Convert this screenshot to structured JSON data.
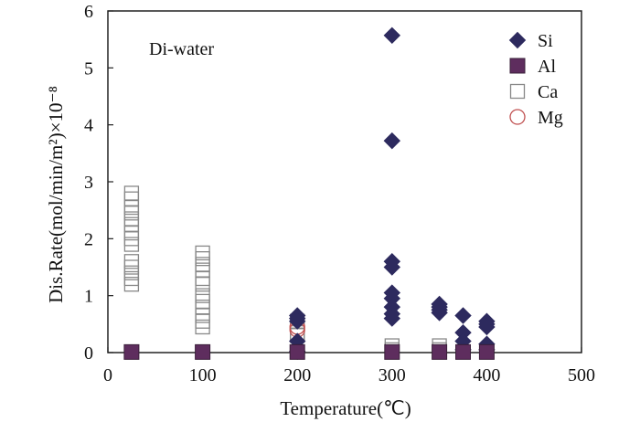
{
  "chart_data": {
    "type": "scatter",
    "title": "",
    "annotation": "Di-water",
    "xlabel": "Temperature(℃)",
    "ylabel": "Dis.Rate(mol/min/m²)×10⁻⁸",
    "xlim": [
      0,
      500
    ],
    "ylim": [
      0,
      6
    ],
    "xticks": [
      "0",
      "100",
      "200",
      "300",
      "400",
      "500"
    ],
    "yticks": [
      "0",
      "1",
      "2",
      "3",
      "4",
      "5",
      "6"
    ],
    "grid": false,
    "legend_position": "top-right",
    "series": [
      {
        "name": "Si",
        "marker": "diamond",
        "color": "#2d2a5e",
        "points": [
          [
            200,
            0.65
          ],
          [
            200,
            0.6
          ],
          [
            200,
            0.55
          ],
          [
            200,
            0.2
          ],
          [
            200,
            0.02
          ],
          [
            300,
            5.57
          ],
          [
            300,
            3.72
          ],
          [
            300,
            1.6
          ],
          [
            300,
            1.5
          ],
          [
            300,
            1.05
          ],
          [
            300,
            0.95
          ],
          [
            300,
            0.8
          ],
          [
            300,
            0.68
          ],
          [
            300,
            0.6
          ],
          [
            350,
            0.85
          ],
          [
            350,
            0.8
          ],
          [
            350,
            0.75
          ],
          [
            350,
            0.7
          ],
          [
            375,
            0.65
          ],
          [
            375,
            0.35
          ],
          [
            375,
            0.2
          ],
          [
            375,
            0.05
          ],
          [
            400,
            0.55
          ],
          [
            400,
            0.5
          ],
          [
            400,
            0.45
          ],
          [
            400,
            0.15
          ],
          [
            400,
            0.05
          ]
        ]
      },
      {
        "name": "Al",
        "marker": "filled-square",
        "color": "#5e2d5e",
        "points": [
          [
            25,
            0.01
          ],
          [
            100,
            0.01
          ],
          [
            200,
            0.01
          ],
          [
            300,
            0.01
          ],
          [
            350,
            0.01
          ],
          [
            375,
            0.01
          ],
          [
            400,
            0.01
          ]
        ]
      },
      {
        "name": "Ca",
        "marker": "open-square",
        "color": "#888888",
        "points": [
          [
            25,
            2.8
          ],
          [
            25,
            2.7
          ],
          [
            25,
            2.55
          ],
          [
            25,
            2.45
          ],
          [
            25,
            2.35
          ],
          [
            25,
            2.25
          ],
          [
            25,
            2.1
          ],
          [
            25,
            2.0
          ],
          [
            25,
            1.9
          ],
          [
            25,
            1.6
          ],
          [
            25,
            1.5
          ],
          [
            25,
            1.4
          ],
          [
            25,
            1.3
          ],
          [
            25,
            1.2
          ],
          [
            100,
            1.75
          ],
          [
            100,
            1.65
          ],
          [
            100,
            1.55
          ],
          [
            100,
            1.45
          ],
          [
            100,
            1.3
          ],
          [
            100,
            1.2
          ],
          [
            100,
            1.0
          ],
          [
            100,
            0.9
          ],
          [
            100,
            0.8
          ],
          [
            100,
            0.65
          ],
          [
            100,
            0.55
          ],
          [
            100,
            0.45
          ],
          [
            200,
            0.55
          ],
          [
            200,
            0.35
          ],
          [
            200,
            0.3
          ],
          [
            300,
            0.12
          ],
          [
            300,
            0.05
          ],
          [
            350,
            0.12
          ],
          [
            350,
            0.05
          ]
        ]
      },
      {
        "name": "Mg",
        "marker": "open-circle",
        "color": "#c05050",
        "points": [
          [
            200,
            0.45
          ],
          [
            200,
            0.4
          ]
        ]
      }
    ]
  }
}
